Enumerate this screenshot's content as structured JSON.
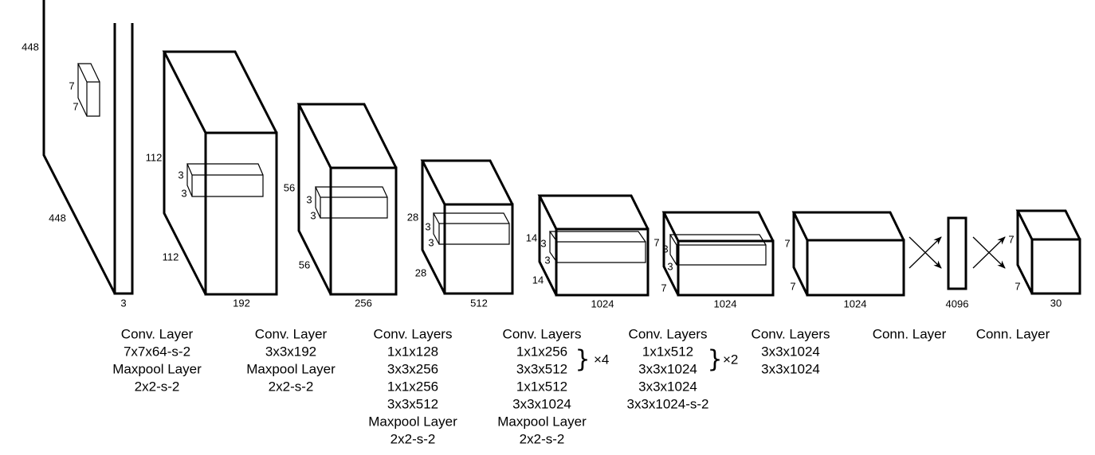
{
  "colors": {
    "stroke": "#000000",
    "background": "#ffffff"
  },
  "layers": [
    {
      "id": "input",
      "dims": [
        "448",
        "448",
        "3"
      ],
      "kernel": [
        "7",
        "7"
      ],
      "caption": [
        "Conv. Layer",
        "7x7x64-s-2",
        "Maxpool Layer",
        "2x2-s-2"
      ]
    },
    {
      "id": "conv2",
      "dims": [
        "112",
        "112",
        "192"
      ],
      "kernel": [
        "3",
        "3"
      ],
      "caption": [
        "Conv. Layer",
        "3x3x192",
        "Maxpool Layer",
        "2x2-s-2"
      ]
    },
    {
      "id": "conv3",
      "dims": [
        "56",
        "56",
        "256"
      ],
      "kernel": [
        "3",
        "3"
      ],
      "caption": [
        "Conv. Layers",
        "1x1x128",
        "3x3x256",
        "1x1x256",
        "3x3x512",
        "Maxpool Layer",
        "2x2-s-2"
      ]
    },
    {
      "id": "conv4",
      "dims": [
        "28",
        "28",
        "512"
      ],
      "kernel": [
        "3",
        "3"
      ],
      "caption": [
        "Conv. Layers",
        "1x1x256",
        "3x3x512",
        "1x1x512",
        "3x3x1024",
        "Maxpool Layer",
        "2x2-s-2"
      ],
      "repeat": "×4"
    },
    {
      "id": "conv5",
      "dims": [
        "14",
        "14",
        "1024"
      ],
      "kernel": [
        "3",
        "3"
      ],
      "caption": [
        "Conv. Layers",
        "1x1x512",
        "3x3x1024",
        "3x3x1024",
        "3x3x1024-s-2"
      ],
      "repeat": "×2"
    },
    {
      "id": "conv6",
      "dims": [
        "7",
        "7",
        "1024"
      ],
      "kernel": [
        "3",
        "3"
      ],
      "caption": [
        "Conv. Layers",
        "3x3x1024",
        "3x3x1024"
      ]
    },
    {
      "id": "conv7",
      "dims": [
        "7",
        "7",
        "1024"
      ],
      "caption": [
        "Conn. Layer"
      ]
    },
    {
      "id": "fc",
      "dims": [
        "4096"
      ],
      "caption": [
        "Conn. Layer"
      ]
    },
    {
      "id": "output",
      "dims": [
        "7",
        "7",
        "30"
      ]
    }
  ]
}
